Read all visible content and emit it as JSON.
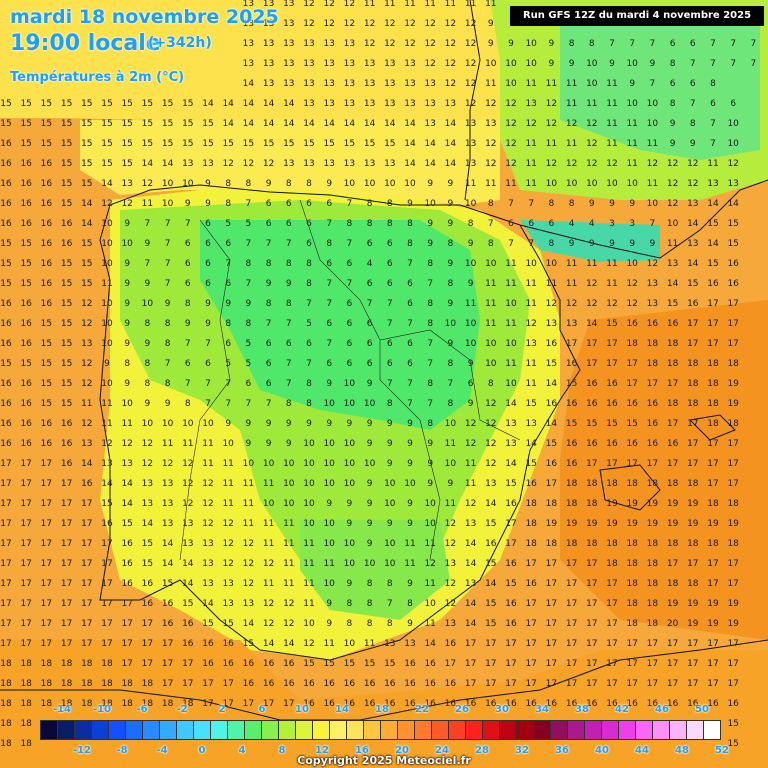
{
  "header": {
    "date": "mardi 18 novembre 2025",
    "time": "19:00 locale",
    "offset": "(+342h)",
    "variable": "Températures à 2m (°C)"
  },
  "run_info": "Run GFS 12Z du mardi 4 novembre 2025",
  "copyright": "Copyright 2025 Meteociel.fr",
  "legend": {
    "top_labels": [
      "-14",
      "-10",
      "-6",
      "-2",
      "2",
      "6",
      "10",
      "14",
      "18",
      "22",
      "26",
      "30",
      "34",
      "38",
      "42",
      "46",
      "50"
    ],
    "bottom_labels": [
      "-12",
      "-8",
      "-4",
      "0",
      "4",
      "8",
      "12",
      "16",
      "20",
      "24",
      "28",
      "32",
      "36",
      "40",
      "44",
      "48",
      "52"
    ],
    "colors": [
      "#08083a",
      "#0a1e66",
      "#0b2e9e",
      "#0b3fd6",
      "#1450ff",
      "#1e6cff",
      "#2a8aff",
      "#35a8ff",
      "#40c8ff",
      "#48e0ff",
      "#4ef5e6",
      "#4cf5a8",
      "#58ef6e",
      "#86f04c",
      "#b4f23a",
      "#dcf43a",
      "#f7f535",
      "#fff066",
      "#ffe45a",
      "#ffc640",
      "#ffac36",
      "#ff9230",
      "#ff7a2c",
      "#ff5a2a",
      "#ff3f25",
      "#ff2020",
      "#e01018",
      "#c00012",
      "#a00010",
      "#840020",
      "#901060",
      "#a81a8e",
      "#c020b4",
      "#d82cd2",
      "#ec40e8",
      "#f868f4",
      "#fc90f6",
      "#fdb4f8",
      "#fed8fb",
      "#ffffff"
    ]
  },
  "temperature_grid": {
    "rows": [
      "14 14 14 14 13 13 13 13 13 13 13 13 13 13 13 12 12 12 11 11 11 11 11 11 11 11 11 10 8 8 8 8 8 8 8 8 8 8",
      "14 14 14 14 13 13 13 13 13 13 13 13 13 13 13 12 12 12 12 12 12 12 12 12 9 9 8 8 8 8 7 6 5 5 6 6 6 6",
      "14 14 14 14 14 14 13 13 13 13 13 13 13 13 13 13 13 13 12 12 12 12 12 12 9 9 10 9 8 8 7 7 7 6 6 7 7 7",
      "14 14 14 14 14 14 14 14 14 14 14 14 13 13 13 13 13 13 13 13 13 12 12 12 10 10 10 9 9 10 9 10 9 8 7 7 7 7",
      "15 15 15 15 15 15 14 14 14 14 14 14 14 13 13 13 13 13 13 13 13 13 12 12 11 10 11 11 11 10 11 9 7 6 6 8",
      "15 15 15 15 15 15 15 15 15 15 14 14 14 14 14 13 13 13 13 13 13 13 13 12 12 12 13 12 11 11 11 10 10 8 7 6 6",
      "15 15 15 15 15 15 15 15 15 15 15 14 14 14 14 14 14 14 14 14 14 13 14 13 13 12 12 12 12 12 11 11 10 9 8 7 10",
      "16 15 15 15 15 15 15 15 15 15 15 15 15 15 15 15 15 15 15 15 14 14 14 13 12 12 11 11 11 12 11 11 11 9 9 7 10",
      "16 16 16 15 15 15 15 14 14 13 13 12 12 12 13 13 13 13 13 13 14 14 14 13 12 12 11 12 12 12 12 11 12 12 12 11 12",
      "16 16 16 15 15 14 13 12 10 10 9 8 8 9 8 8 9 10 10 10 10 9 9 11 11 11 11 10 10 10 10 10 11 12 12 13 13",
      "16 16 16 15 14 12 12 11 10 9 9 8 7 6 6 6 6 7 8 8 9 10 9 10 8 7 7 8 8 9 9 9 10 12 13 14 14",
      "16 16 16 16 14 10 9 7 7 7 6 5 5 6 6 6 7 8 8 8 8 9 9 8 7 6 6 6 4 4 3 3 7 10 14 15 15",
      "15 15 16 16 15 10 10 9 7 6 6 6 7 7 7 6 8 7 6 6 8 9 8 9 8 7 7 8 9 9 9 9 9 11 13 14 15",
      "15 15 16 15 15 10 9 7 7 6 6 7 8 8 8 8 6 6 4 6 7 8 9 10 10 11 10 10 11 11 11 10 12 13 14 15 16",
      "15 15 16 15 15 11 9 9 7 6 6 6 7 9 9 8 7 7 6 6 6 7 8 9 11 11 11 11 11 12 11 12 13 14 15 16 16",
      "16 16 16 15 12 10 9 10 9 8 9 9 9 8 8 7 7 6 7 7 6 8 9 11 11 10 11 12 12 12 12 12 13 15 16 17 17",
      "16 16 15 15 12 10 9 8 8 9 9 8 8 7 7 5 6 6 6 7 7 8 10 10 11 11 12 13 13 14 15 16 16 16 17 17 17",
      "16 16 15 15 13 10 9 9 8 7 7 6 5 6 6 6 7 6 6 6 6 7 9 10 10 10 13 16 17 17 17 18 18 18 17 17 17",
      "15 15 15 15 12 9 8 8 7 6 6 5 5 6 7 7 6 6 6 6 6 7 8 9 10 11 11 15 16 17 17 17 18 18 18 18 18",
      "16 16 15 15 12 10 9 8 8 7 7 7 6 6 7 8 9 10 9 7 7 8 7 6 8 10 11 14 15 16 16 17 17 17 18 18 19",
      "16 16 15 15 11 11 10 9 9 8 7 7 7 7 8 8 10 10 10 8 7 7 8 9 12 14 15 16 16 16 16 16 16 18 18 18 19",
      "16 16 16 16 12 11 11 10 10 10 10 9 9 9 9 9 9 9 9 9 9 8 10 12 12 13 13 14 15 15 15 15 16 17 17 18 18",
      "16 16 16 16 13 12 12 12 11 11 11 10 9 9 9 10 10 10 9 9 9 9 11 12 12 13 14 15 16 16 16 16 16 16 17 17 17",
      "17 17 17 16 14 13 13 12 12 12 11 11 10 10 10 10 10 10 10 9 9 9 10 11 12 14 15 16 16 17 17 17 17 17 17 17 17",
      "17 17 17 17 16 14 14 13 13 12 12 11 11 11 10 10 10 10 9 10 10 9 9 11 13 15 16 17 18 18 18 18 18 18 18 17 17",
      "17 17 17 17 17 15 14 13 13 12 12 11 11 10 10 10 9 9 9 10 9 10 11 12 14 16 18 18 18 18 19 19 19 19 19 18 18",
      "17 17 17 17 17 16 15 14 13 13 12 12 11 11 11 10 10 9 9 9 9 10 12 13 15 17 18 19 19 19 19 19 19 19 19 19 19",
      "17 17 17 17 17 17 16 15 14 13 13 12 12 11 11 11 10 10 9 10 11 11 12 14 16 17 18 18 18 18 18 18 18 18 18 18 18",
      "17 17 17 17 17 17 16 15 14 14 13 12 12 12 11 11 11 10 10 10 11 12 13 14 15 16 17 17 17 17 18 18 18 17 17 17 17",
      "17 17 17 17 17 17 16 16 15 14 13 13 12 11 11 11 10 9 8 8 9 11 12 13 14 15 16 17 17 17 17 18 18 18 18 17 17",
      "17 17 17 17 17 17 17 16 16 15 14 13 13 12 12 11 9 8 8 7 8 10 12 14 15 16 17 17 17 17 17 18 18 19 19 19 19",
      "17 17 17 17 17 17 17 17 16 16 15 15 14 12 12 10 9 8 8 8 9 11 13 14 15 16 17 17 17 17 17 18 18 20 19 19 19",
      "17 17 17 17 17 17 17 17 17 16 16 16 15 14 14 12 11 10 11 13 13 14 16 17 17 17 17 17 17 17 17 17 17 17 17 17 17",
      "18 18 18 18 18 18 17 17 17 17 16 16 16 16 16 15 15 15 15 15 16 16 17 17 17 17 17 17 17 17 17 17 17 17 17 17 17",
      "18 18 18 18 18 18 18 18 17 17 17 17 16 16 16 16 16 16 16 16 16 16 16 17 17 17 17 17 17 17 17 17 17 17 17 17 17",
      "18 18 18 18 18 18 18 18 18 18 17 17 17 17 17 16 16 16 16 16 16 16 16 16 16 16 16 16 16 16 16 16 16 16 16 16 16",
      "18 18 18 18 18 18 18 18 18 18 18 18 17 17 17 16 16 16 16 16 16 15 15 15 15 15 15 15 15 15 15 15 15 15 15 15 15",
      "18 18 18 18 18 18 18 18 18 18 18 18 18 17 17 17 16 16 16 16 15 15 15 15 15 15 15 15 15 15 15 15 15 15 15 15 15"
    ]
  },
  "color_scale_temps": {
    "min": -14,
    "max": 52,
    "step": 1.65
  }
}
